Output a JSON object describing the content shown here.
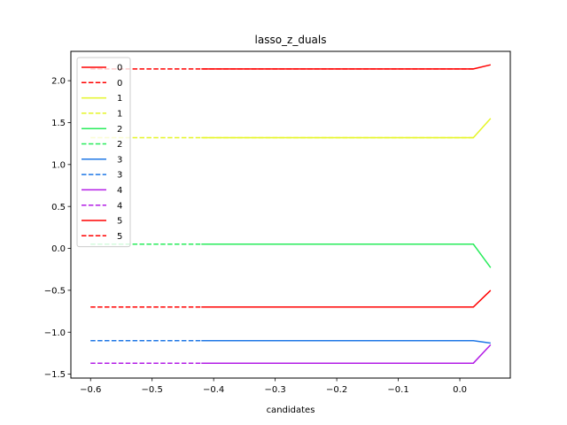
{
  "chart_data": {
    "type": "line",
    "title": "lasso_z_duals",
    "xlabel": "candidates",
    "ylabel": "",
    "xlim": [
      -0.632,
      0.082
    ],
    "ylim": [
      -1.547,
      2.35
    ],
    "xticks": [
      -0.6,
      -0.5,
      -0.4,
      -0.3,
      -0.2,
      -0.1,
      0.0
    ],
    "xtick_labels": [
      "−0.6",
      "−0.5",
      "−0.4",
      "−0.3",
      "−0.2",
      "−0.1",
      "0.0"
    ],
    "yticks": [
      -1.5,
      -1.0,
      -0.5,
      0.0,
      0.5,
      1.0,
      1.5,
      2.0
    ],
    "ytick_labels": [
      "−1.5",
      "−1.0",
      "−0.5",
      "0.0",
      "0.5",
      "1.0",
      "1.5",
      "2.0"
    ],
    "grid": false,
    "legend": "upper left",
    "series": [
      {
        "name": "0",
        "color": "#ff0000",
        "style": "solid",
        "x": [
          -0.42,
          0.022,
          0.05
        ],
        "y": [
          2.14,
          2.14,
          2.19
        ]
      },
      {
        "name": "0",
        "color": "#ff0000",
        "style": "dashed",
        "x": [
          -0.6,
          0.022
        ],
        "y": [
          2.14,
          2.14
        ]
      },
      {
        "name": "1",
        "color": "#e5f527",
        "style": "solid",
        "x": [
          -0.42,
          0.022,
          0.05
        ],
        "y": [
          1.32,
          1.32,
          1.55
        ]
      },
      {
        "name": "1",
        "color": "#e5f527",
        "style": "dashed",
        "x": [
          -0.6,
          0.022
        ],
        "y": [
          1.32,
          1.32
        ]
      },
      {
        "name": "2",
        "color": "#28ec5b",
        "style": "solid",
        "x": [
          -0.42,
          0.022,
          0.05
        ],
        "y": [
          0.05,
          0.05,
          -0.23
        ]
      },
      {
        "name": "2",
        "color": "#28ec5b",
        "style": "dashed",
        "x": [
          -0.6,
          0.022
        ],
        "y": [
          0.05,
          0.05
        ]
      },
      {
        "name": "3",
        "color": "#1f77e6",
        "style": "solid",
        "x": [
          -0.42,
          0.022,
          0.05
        ],
        "y": [
          -1.1,
          -1.1,
          -1.13
        ]
      },
      {
        "name": "3",
        "color": "#1f77e6",
        "style": "dashed",
        "x": [
          -0.6,
          0.022
        ],
        "y": [
          -1.1,
          -1.1
        ]
      },
      {
        "name": "4",
        "color": "#b31ee6",
        "style": "solid",
        "x": [
          -0.42,
          0.022,
          0.05
        ],
        "y": [
          -1.37,
          -1.37,
          -1.15
        ]
      },
      {
        "name": "4",
        "color": "#b31ee6",
        "style": "dashed",
        "x": [
          -0.6,
          0.022
        ],
        "y": [
          -1.37,
          -1.37
        ]
      },
      {
        "name": "5",
        "color": "#ff0000",
        "style": "solid",
        "x": [
          -0.42,
          0.022,
          0.05
        ],
        "y": [
          -0.7,
          -0.7,
          -0.5
        ]
      },
      {
        "name": "5",
        "color": "#ff0000",
        "style": "dashed",
        "x": [
          -0.6,
          0.022
        ],
        "y": [
          -0.7,
          -0.7
        ]
      }
    ]
  }
}
